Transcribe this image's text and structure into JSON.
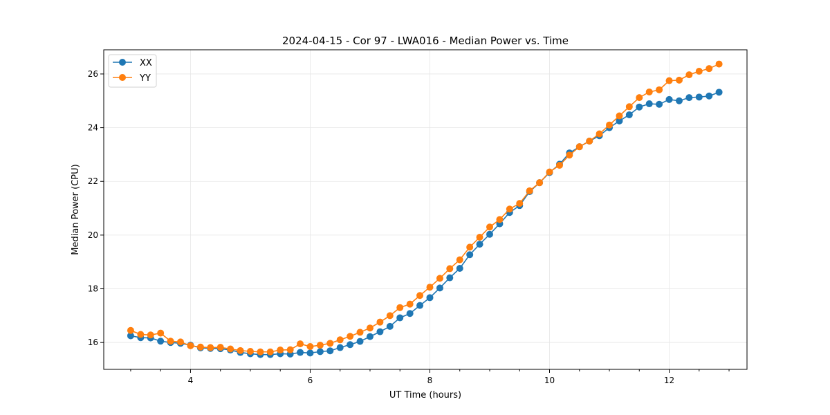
{
  "chart_data": {
    "type": "line",
    "title": "2024-04-15 - Cor 97 - LWA016 - Median Power vs. Time",
    "xlabel": "UT Time (hours)",
    "ylabel": "Median Power (CPU)",
    "xlim": [
      2.55,
      13.3
    ],
    "ylim": [
      15.0,
      26.9
    ],
    "xticks": [
      4,
      6,
      8,
      10,
      12
    ],
    "xtick_labels": [
      "4",
      "6",
      "8",
      "10",
      "12"
    ],
    "xminor_step": 0.5,
    "yticks": [
      16,
      18,
      20,
      22,
      24,
      26
    ],
    "ytick_labels": [
      "16",
      "18",
      "20",
      "22",
      "24",
      "26"
    ],
    "grid": true,
    "legend_position": "top-left",
    "x": [
      3.0,
      3.167,
      3.333,
      3.5,
      3.667,
      3.833,
      4.0,
      4.167,
      4.333,
      4.5,
      4.667,
      4.833,
      5.0,
      5.167,
      5.333,
      5.5,
      5.667,
      5.833,
      6.0,
      6.167,
      6.333,
      6.5,
      6.667,
      6.833,
      7.0,
      7.167,
      7.333,
      7.5,
      7.667,
      7.833,
      8.0,
      8.167,
      8.333,
      8.5,
      8.667,
      8.833,
      9.0,
      9.167,
      9.333,
      9.5,
      9.667,
      9.833,
      10.0,
      10.167,
      10.333,
      10.5,
      10.667,
      10.833,
      11.0,
      11.167,
      11.333,
      11.5,
      11.667,
      11.833,
      12.0,
      12.167,
      12.333,
      12.5,
      12.667,
      12.833
    ],
    "series": [
      {
        "name": "XX",
        "color": "#1f77b4",
        "values": [
          16.25,
          16.18,
          16.17,
          16.05,
          16.0,
          15.97,
          15.9,
          15.8,
          15.78,
          15.77,
          15.72,
          15.63,
          15.58,
          15.55,
          15.55,
          15.58,
          15.57,
          15.63,
          15.61,
          15.66,
          15.69,
          15.81,
          15.92,
          16.04,
          16.22,
          16.4,
          16.6,
          16.92,
          17.08,
          17.38,
          17.67,
          18.03,
          18.41,
          18.76,
          19.27,
          19.66,
          20.03,
          20.42,
          20.84,
          21.1,
          21.62,
          21.95,
          22.33,
          22.64,
          23.06,
          23.29,
          23.5,
          23.7,
          24.0,
          24.25,
          24.48,
          24.77,
          24.89,
          24.87,
          25.05,
          25.0,
          25.12,
          25.14,
          25.18,
          25.32
        ]
      },
      {
        "name": "YY",
        "color": "#ff7f0e",
        "values": [
          16.45,
          16.3,
          16.28,
          16.35,
          16.05,
          16.02,
          15.88,
          15.83,
          15.81,
          15.82,
          15.76,
          15.7,
          15.67,
          15.65,
          15.65,
          15.72,
          15.73,
          15.95,
          15.85,
          15.9,
          15.97,
          16.1,
          16.23,
          16.38,
          16.54,
          16.76,
          17.0,
          17.3,
          17.43,
          17.75,
          18.06,
          18.39,
          18.75,
          19.08,
          19.55,
          19.92,
          20.3,
          20.58,
          20.97,
          21.18,
          21.65,
          21.95,
          22.35,
          22.6,
          22.98,
          23.29,
          23.5,
          23.77,
          24.1,
          24.44,
          24.78,
          25.12,
          25.33,
          25.41,
          25.75,
          25.77,
          25.97,
          26.1,
          26.2,
          26.37
        ]
      }
    ]
  }
}
